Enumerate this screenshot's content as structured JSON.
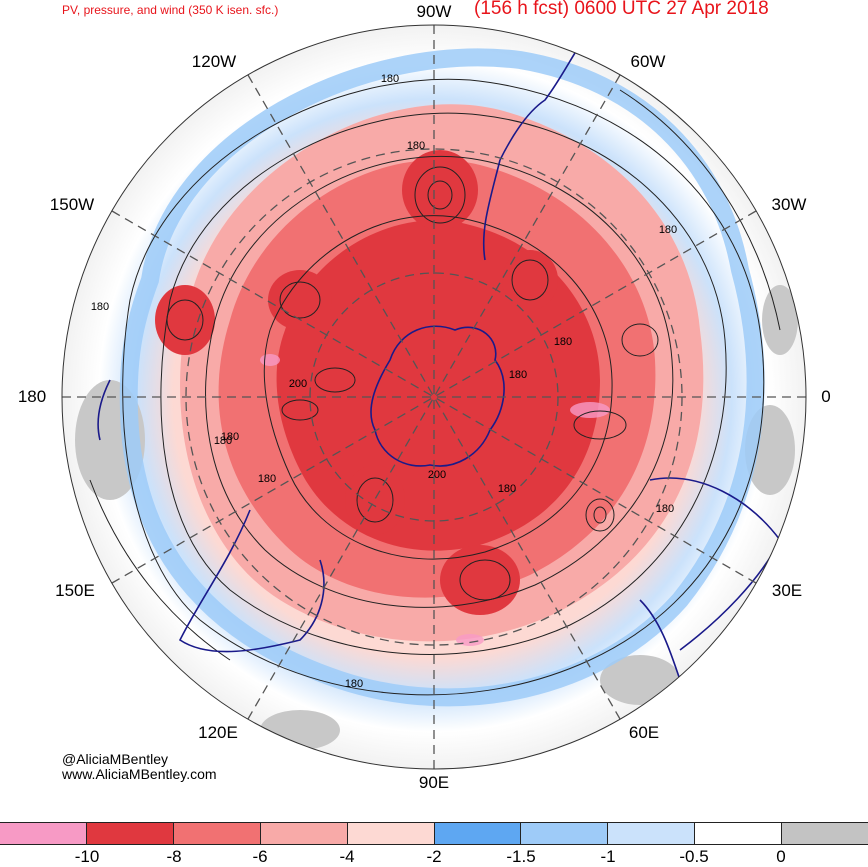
{
  "header": {
    "title": "PV, pressure, and wind (350 K isen. sfc.)",
    "forecast": "(156 h fcst) 0600 UTC 27 Apr 2018"
  },
  "longitudes": [
    {
      "name": "lon-90w",
      "label": "90W"
    },
    {
      "name": "lon-60w",
      "label": "60W"
    },
    {
      "name": "lon-30w",
      "label": "30W"
    },
    {
      "name": "lon-0",
      "label": "0"
    },
    {
      "name": "lon-30e",
      "label": "30E"
    },
    {
      "name": "lon-60e",
      "label": "60E"
    },
    {
      "name": "lon-90e",
      "label": "90E"
    },
    {
      "name": "lon-120e",
      "label": "120E"
    },
    {
      "name": "lon-150e",
      "label": "150E"
    },
    {
      "name": "lon-180",
      "label": "180"
    },
    {
      "name": "lon-150w",
      "label": "150W"
    },
    {
      "name": "lon-120w",
      "label": "120W"
    }
  ],
  "contour_labels": [
    "180",
    "180",
    "180",
    "180",
    "180",
    "180",
    "200",
    "180",
    "180",
    "180",
    "200",
    "180",
    "180",
    "180"
  ],
  "credit": {
    "handle": "@AliciaMBentley",
    "website": "www.AliciaMBentley.com"
  },
  "colorbar": {
    "colors": [
      "#f79ac5",
      "#e0383f",
      "#f17172",
      "#f8aaa8",
      "#fdd9d3",
      "#5ea7f2",
      "#9ecbf8",
      "#cbe2fb",
      "#ffffff",
      "#c3c3c3"
    ],
    "ticks": [
      "-10",
      "-8",
      "-6",
      "-4",
      "-2",
      "-1.5",
      "-1",
      "-0.5",
      "0"
    ]
  }
}
